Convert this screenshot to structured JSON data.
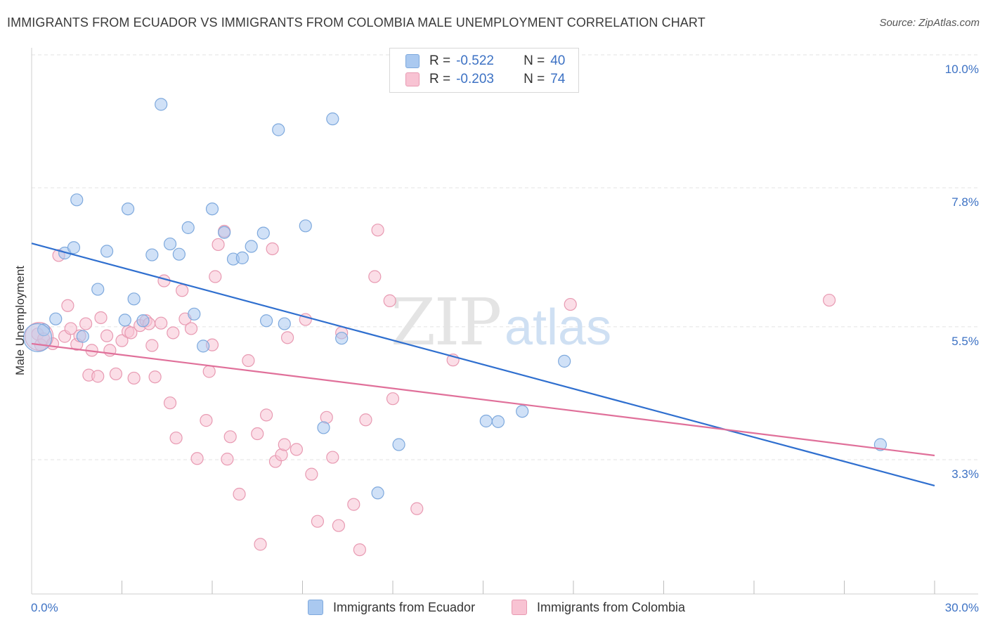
{
  "title": "IMMIGRANTS FROM ECUADOR VS IMMIGRANTS FROM COLOMBIA MALE UNEMPLOYMENT CORRELATION CHART",
  "source": "Source: ZipAtlas.com",
  "watermark": {
    "zip": "ZIP",
    "atlas": "atlas"
  },
  "legend": {
    "r_label": "R =",
    "n_label": "N =",
    "rows": [
      {
        "r": "-0.522",
        "n": "40",
        "color": "#aac9f0",
        "border": "#7ea9dd"
      },
      {
        "r": "-0.203",
        "n": "74",
        "color": "#f8c3d3",
        "border": "#e89ab2"
      }
    ]
  },
  "bottom_legend": [
    {
      "label": "Immigrants from Ecuador",
      "color": "#aac9f0",
      "border": "#7ea9dd"
    },
    {
      "label": "Immigrants from Colombia",
      "color": "#f8c3d3",
      "border": "#e89ab2"
    }
  ],
  "chart_data": {
    "type": "scatter",
    "title": "IMMIGRANTS FROM ECUADOR VS IMMIGRANTS FROM COLOMBIA MALE UNEMPLOYMENT CORRELATION CHART",
    "xlabel": "",
    "ylabel": "Male Unemployment",
    "xlim": [
      0,
      30
    ],
    "ylim": [
      1.0,
      10.7
    ],
    "x_tick_labels": [
      {
        "value": 0,
        "label": "0.0%"
      },
      {
        "value": 30,
        "label": "30.0%"
      }
    ],
    "y_tick_labels": [
      {
        "value": 3.3,
        "label": "3.3%"
      },
      {
        "value": 5.5,
        "label": "5.5%"
      },
      {
        "value": 7.8,
        "label": "7.8%"
      },
      {
        "value": 10.0,
        "label": "10.0%"
      }
    ],
    "x_minor_ticks": [
      3,
      6,
      9,
      12,
      15,
      18,
      21,
      24,
      27
    ],
    "grid": true,
    "legend_position": "top-center",
    "series": [
      {
        "name": "Immigrants from Ecuador",
        "color": "#7ea9dd",
        "fill": "#aac9f0",
        "trend": {
          "x": [
            0,
            30
          ],
          "y": [
            6.88,
            2.87
          ]
        },
        "points": [
          [
            0.4,
            5.45
          ],
          [
            0.8,
            5.63
          ],
          [
            1.1,
            6.72
          ],
          [
            1.7,
            5.34
          ],
          [
            1.4,
            6.81
          ],
          [
            1.5,
            7.6
          ],
          [
            2.2,
            6.12
          ],
          [
            2.5,
            6.75
          ],
          [
            3.1,
            5.61
          ],
          [
            3.2,
            7.45
          ],
          [
            3.4,
            5.96
          ],
          [
            3.7,
            5.6
          ],
          [
            4.0,
            6.69
          ],
          [
            4.3,
            9.18
          ],
          [
            4.6,
            6.87
          ],
          [
            4.9,
            6.7
          ],
          [
            5.2,
            7.14
          ],
          [
            5.4,
            5.71
          ],
          [
            5.7,
            5.18
          ],
          [
            6.0,
            7.45
          ],
          [
            6.4,
            7.06
          ],
          [
            6.7,
            6.62
          ],
          [
            7.0,
            6.64
          ],
          [
            7.3,
            6.83
          ],
          [
            7.7,
            7.05
          ],
          [
            7.8,
            5.6
          ],
          [
            8.2,
            8.76
          ],
          [
            8.4,
            5.55
          ],
          [
            9.1,
            7.17
          ],
          [
            9.7,
            3.83
          ],
          [
            10.0,
            8.94
          ],
          [
            10.3,
            5.31
          ],
          [
            11.5,
            2.75
          ],
          [
            12.2,
            3.55
          ],
          [
            15.1,
            3.94
          ],
          [
            15.5,
            3.93
          ],
          [
            16.3,
            4.1
          ],
          [
            17.7,
            4.93
          ],
          [
            28.2,
            3.55
          ],
          [
            0.2,
            5.32
          ]
        ]
      },
      {
        "name": "Immigrants from Colombia",
        "color": "#e89ab2",
        "fill": "#f8c3d3",
        "trend": {
          "x": [
            0,
            30
          ],
          "y": [
            5.22,
            3.37
          ]
        },
        "points": [
          [
            0.2,
            5.38
          ],
          [
            0.3,
            5.2
          ],
          [
            0.4,
            5.3
          ],
          [
            0.7,
            5.22
          ],
          [
            0.9,
            6.68
          ],
          [
            1.1,
            5.34
          ],
          [
            1.2,
            5.85
          ],
          [
            1.3,
            5.47
          ],
          [
            1.5,
            5.21
          ],
          [
            1.6,
            5.35
          ],
          [
            1.8,
            5.55
          ],
          [
            1.9,
            4.7
          ],
          [
            2.0,
            5.11
          ],
          [
            2.2,
            4.68
          ],
          [
            2.3,
            5.65
          ],
          [
            2.5,
            5.35
          ],
          [
            2.6,
            5.11
          ],
          [
            2.8,
            4.72
          ],
          [
            3.0,
            5.27
          ],
          [
            3.2,
            5.42
          ],
          [
            3.3,
            5.4
          ],
          [
            3.4,
            4.65
          ],
          [
            3.6,
            5.52
          ],
          [
            3.8,
            5.6
          ],
          [
            3.9,
            5.55
          ],
          [
            4.0,
            5.19
          ],
          [
            4.1,
            4.67
          ],
          [
            4.3,
            5.56
          ],
          [
            4.4,
            6.26
          ],
          [
            4.6,
            4.24
          ],
          [
            4.7,
            5.4
          ],
          [
            4.8,
            3.66
          ],
          [
            5.0,
            6.1
          ],
          [
            5.1,
            5.63
          ],
          [
            5.3,
            5.47
          ],
          [
            5.5,
            3.32
          ],
          [
            5.8,
            3.95
          ],
          [
            5.9,
            4.76
          ],
          [
            6.0,
            5.2
          ],
          [
            6.1,
            6.33
          ],
          [
            6.2,
            6.86
          ],
          [
            6.4,
            7.08
          ],
          [
            6.5,
            3.31
          ],
          [
            6.6,
            3.68
          ],
          [
            6.9,
            2.73
          ],
          [
            7.2,
            4.94
          ],
          [
            7.5,
            3.73
          ],
          [
            7.6,
            1.9
          ],
          [
            7.8,
            4.04
          ],
          [
            8.0,
            6.79
          ],
          [
            8.1,
            3.27
          ],
          [
            8.3,
            3.38
          ],
          [
            8.4,
            3.55
          ],
          [
            8.5,
            5.32
          ],
          [
            8.8,
            3.47
          ],
          [
            9.1,
            5.62
          ],
          [
            9.3,
            3.06
          ],
          [
            9.5,
            2.28
          ],
          [
            9.8,
            4.0
          ],
          [
            10.0,
            3.34
          ],
          [
            10.2,
            2.21
          ],
          [
            10.3,
            5.4
          ],
          [
            10.7,
            2.56
          ],
          [
            10.9,
            1.81
          ],
          [
            11.1,
            3.96
          ],
          [
            11.4,
            6.33
          ],
          [
            11.5,
            7.1
          ],
          [
            11.9,
            5.93
          ],
          [
            12.0,
            4.31
          ],
          [
            12.8,
            2.49
          ],
          [
            14.0,
            4.95
          ],
          [
            17.9,
            5.87
          ],
          [
            26.5,
            5.94
          ],
          [
            0.25,
            5.34
          ]
        ]
      }
    ]
  }
}
